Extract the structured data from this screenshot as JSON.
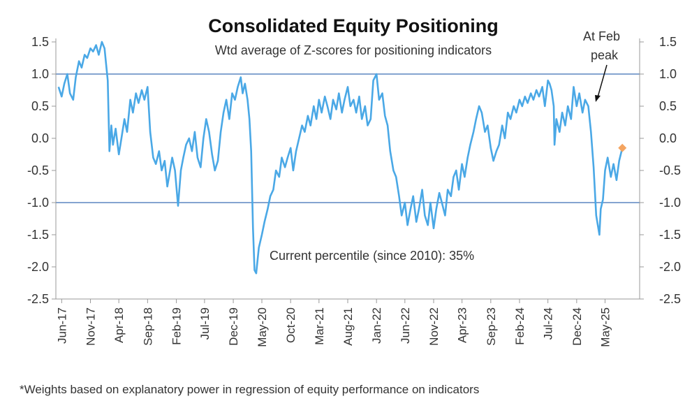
{
  "chart_data": {
    "type": "line",
    "title": "Consolidated Equity Positioning",
    "subtitle": "Wtd average of Z-scores for positioning indicators",
    "footnote": "*Weights based on explanatory power in regression of equity performance on indicators",
    "annotations": [
      {
        "id": "percentile",
        "text": "Current percentile (since 2010): 35%"
      },
      {
        "id": "feb-peak-1",
        "text": "At Feb"
      },
      {
        "id": "feb-peak-2",
        "text": "peak"
      }
    ],
    "ylim": [
      -2.5,
      1.5
    ],
    "yticks": [
      "1.5",
      "1.0",
      "0.5",
      "0.0",
      "-0.5",
      "-1.0",
      "-1.5",
      "-2.0",
      "-2.5"
    ],
    "ytick_values": [
      1.5,
      1.0,
      0.5,
      0.0,
      -0.5,
      -1.0,
      -1.5,
      -2.0,
      -2.5
    ],
    "xlim": [
      "2017-05-01",
      "2025-11-01"
    ],
    "xticks": [
      {
        "label": "Jun-17",
        "date": "2017-06-01"
      },
      {
        "label": "Nov-17",
        "date": "2017-11-01"
      },
      {
        "label": "Apr-18",
        "date": "2018-04-01"
      },
      {
        "label": "Sep-18",
        "date": "2018-09-01"
      },
      {
        "label": "Feb-19",
        "date": "2019-02-01"
      },
      {
        "label": "Jul-19",
        "date": "2019-07-01"
      },
      {
        "label": "Dec-19",
        "date": "2019-12-01"
      },
      {
        "label": "May-20",
        "date": "2020-05-01"
      },
      {
        "label": "Oct-20",
        "date": "2020-10-01"
      },
      {
        "label": "Mar-21",
        "date": "2021-03-01"
      },
      {
        "label": "Aug-21",
        "date": "2021-08-01"
      },
      {
        "label": "Jan-22",
        "date": "2022-01-01"
      },
      {
        "label": "Jun-22",
        "date": "2022-06-01"
      },
      {
        "label": "Nov-22",
        "date": "2022-11-01"
      },
      {
        "label": "Apr-23",
        "date": "2023-04-01"
      },
      {
        "label": "Sep-23",
        "date": "2023-09-01"
      },
      {
        "label": "Feb-24",
        "date": "2024-02-01"
      },
      {
        "label": "Jul-24",
        "date": "2024-07-01"
      },
      {
        "label": "Dec-24",
        "date": "2024-12-01"
      },
      {
        "label": "May-25",
        "date": "2025-05-01"
      }
    ],
    "reference_lines": [
      1.0,
      -1.0
    ],
    "grid": false,
    "legend": "none",
    "colors": {
      "line": "#4aa8e6",
      "reference": "#5b86c0",
      "marker": "#f4a460",
      "axis": "#999999"
    },
    "series": [
      {
        "x": [
          "2017-05-15",
          "2017-06-01",
          "2017-06-15",
          "2017-07-01",
          "2017-07-15",
          "2017-08-01",
          "2017-08-15",
          "2017-09-01",
          "2017-09-15",
          "2017-10-01",
          "2017-10-15",
          "2017-11-01",
          "2017-11-15",
          "2017-12-01",
          "2017-12-15",
          "2018-01-01",
          "2018-01-15",
          "2018-02-01",
          "2018-02-10",
          "2018-02-20",
          "2018-03-01",
          "2018-03-15",
          "2018-04-01",
          "2018-04-15",
          "2018-05-01",
          "2018-05-15",
          "2018-06-01",
          "2018-06-15",
          "2018-07-01",
          "2018-07-15",
          "2018-08-01",
          "2018-08-15",
          "2018-09-01",
          "2018-09-15",
          "2018-10-01",
          "2018-10-15",
          "2018-11-01",
          "2018-11-15",
          "2018-12-01",
          "2018-12-15",
          "2018-12-24",
          "2019-01-10",
          "2019-01-25",
          "2019-02-10",
          "2019-02-25",
          "2019-03-10",
          "2019-03-25",
          "2019-04-10",
          "2019-04-25",
          "2019-05-10",
          "2019-05-25",
          "2019-06-10",
          "2019-06-25",
          "2019-07-10",
          "2019-07-25",
          "2019-08-10",
          "2019-08-25",
          "2019-09-10",
          "2019-09-25",
          "2019-10-10",
          "2019-10-25",
          "2019-11-10",
          "2019-11-25",
          "2019-12-10",
          "2019-12-25",
          "2020-01-10",
          "2020-01-20",
          "2020-02-01",
          "2020-02-15",
          "2020-02-25",
          "2020-03-05",
          "2020-03-15",
          "2020-03-23",
          "2020-04-01",
          "2020-04-15",
          "2020-05-01",
          "2020-05-15",
          "2020-06-01",
          "2020-06-15",
          "2020-07-01",
          "2020-07-15",
          "2020-08-01",
          "2020-08-15",
          "2020-09-01",
          "2020-09-15",
          "2020-10-01",
          "2020-10-15",
          "2020-10-30",
          "2020-11-15",
          "2020-12-01",
          "2020-12-15",
          "2021-01-01",
          "2021-01-15",
          "2021-02-01",
          "2021-02-15",
          "2021-03-01",
          "2021-03-15",
          "2021-04-01",
          "2021-04-15",
          "2021-05-01",
          "2021-05-15",
          "2021-06-01",
          "2021-06-15",
          "2021-07-01",
          "2021-07-15",
          "2021-08-01",
          "2021-08-15",
          "2021-09-01",
          "2021-09-15",
          "2021-10-01",
          "2021-10-15",
          "2021-11-01",
          "2021-11-15",
          "2021-12-01",
          "2021-12-15",
          "2022-01-01",
          "2022-01-15",
          "2022-02-01",
          "2022-02-15",
          "2022-03-01",
          "2022-03-15",
          "2022-04-01",
          "2022-04-15",
          "2022-05-01",
          "2022-05-15",
          "2022-06-01",
          "2022-06-15",
          "2022-07-01",
          "2022-07-15",
          "2022-08-01",
          "2022-08-15",
          "2022-09-01",
          "2022-09-15",
          "2022-10-01",
          "2022-10-15",
          "2022-11-01",
          "2022-11-15",
          "2022-12-01",
          "2022-12-15",
          "2023-01-01",
          "2023-01-15",
          "2023-02-01",
          "2023-02-15",
          "2023-03-01",
          "2023-03-15",
          "2023-04-01",
          "2023-04-15",
          "2023-05-01",
          "2023-05-15",
          "2023-06-01",
          "2023-06-15",
          "2023-07-01",
          "2023-07-15",
          "2023-08-01",
          "2023-08-15",
          "2023-09-01",
          "2023-09-15",
          "2023-10-01",
          "2023-10-15",
          "2023-11-01",
          "2023-11-15",
          "2023-12-01",
          "2023-12-15",
          "2024-01-01",
          "2024-01-15",
          "2024-02-01",
          "2024-02-15",
          "2024-03-01",
          "2024-03-15",
          "2024-04-01",
          "2024-04-15",
          "2024-05-01",
          "2024-05-15",
          "2024-06-01",
          "2024-06-15",
          "2024-07-01",
          "2024-07-10",
          "2024-07-20",
          "2024-08-01",
          "2024-08-05",
          "2024-08-15",
          "2024-09-01",
          "2024-09-15",
          "2024-10-01",
          "2024-10-15",
          "2024-11-01",
          "2024-11-15",
          "2024-12-01",
          "2024-12-15",
          "2025-01-01",
          "2025-01-15",
          "2025-02-01",
          "2025-02-15",
          "2025-03-01",
          "2025-03-15",
          "2025-04-01",
          "2025-04-08",
          "2025-04-20",
          "2025-05-01",
          "2025-05-15",
          "2025-06-01",
          "2025-06-15",
          "2025-07-01",
          "2025-07-15",
          "2025-08-01"
        ],
        "y": [
          0.8,
          0.65,
          0.85,
          1.0,
          0.7,
          0.6,
          0.95,
          1.2,
          1.1,
          1.3,
          1.25,
          1.4,
          1.35,
          1.45,
          1.3,
          1.5,
          1.4,
          0.9,
          -0.2,
          0.2,
          -0.1,
          0.15,
          -0.25,
          0.0,
          0.3,
          0.1,
          0.6,
          0.4,
          0.7,
          0.55,
          0.75,
          0.6,
          0.8,
          0.1,
          -0.3,
          -0.4,
          -0.2,
          -0.5,
          -0.35,
          -0.75,
          -0.6,
          -0.3,
          -0.5,
          -1.05,
          -0.5,
          -0.3,
          -0.1,
          0.0,
          -0.2,
          0.1,
          -0.3,
          -0.45,
          0.0,
          0.3,
          0.1,
          -0.25,
          -0.5,
          -0.35,
          0.1,
          0.4,
          0.6,
          0.3,
          0.7,
          0.6,
          0.8,
          0.95,
          0.7,
          0.85,
          0.6,
          0.3,
          -0.2,
          -1.4,
          -2.05,
          -2.1,
          -1.7,
          -1.5,
          -1.3,
          -1.1,
          -0.9,
          -0.8,
          -0.5,
          -0.6,
          -0.3,
          -0.45,
          -0.3,
          -0.15,
          -0.5,
          -0.2,
          0.0,
          0.2,
          0.1,
          0.35,
          0.2,
          0.5,
          0.3,
          0.6,
          0.4,
          0.65,
          0.5,
          0.3,
          0.6,
          0.45,
          0.7,
          0.4,
          0.6,
          0.8,
          0.5,
          0.6,
          0.4,
          0.65,
          0.3,
          0.5,
          0.2,
          0.3,
          0.9,
          1.0,
          0.6,
          0.7,
          0.35,
          0.2,
          -0.2,
          -0.5,
          -0.6,
          -0.9,
          -1.2,
          -1.0,
          -1.35,
          -1.1,
          -0.9,
          -1.3,
          -1.1,
          -0.8,
          -1.2,
          -1.35,
          -1.0,
          -1.4,
          -1.1,
          -0.85,
          -1.0,
          -1.2,
          -0.8,
          -0.9,
          -0.6,
          -0.5,
          -0.8,
          -0.4,
          -0.6,
          -0.3,
          -0.1,
          0.1,
          0.3,
          0.5,
          0.4,
          0.1,
          0.2,
          -0.15,
          -0.35,
          -0.2,
          -0.1,
          0.2,
          0.0,
          0.4,
          0.3,
          0.5,
          0.4,
          0.6,
          0.5,
          0.65,
          0.55,
          0.7,
          0.6,
          0.75,
          0.65,
          0.8,
          0.5,
          0.9,
          0.85,
          0.75,
          0.5,
          -0.1,
          0.3,
          0.1,
          0.4,
          0.2,
          0.5,
          0.3,
          0.8,
          0.5,
          0.7,
          0.4,
          0.6,
          0.5,
          0.1,
          -0.45,
          -1.2,
          -1.5,
          -1.1,
          -0.95,
          -0.5,
          -0.3,
          -0.6,
          -0.4,
          -0.65,
          -0.35,
          -0.15
        ]
      }
    ],
    "current_marker": {
      "x": "2025-08-01",
      "y": -0.15
    }
  }
}
